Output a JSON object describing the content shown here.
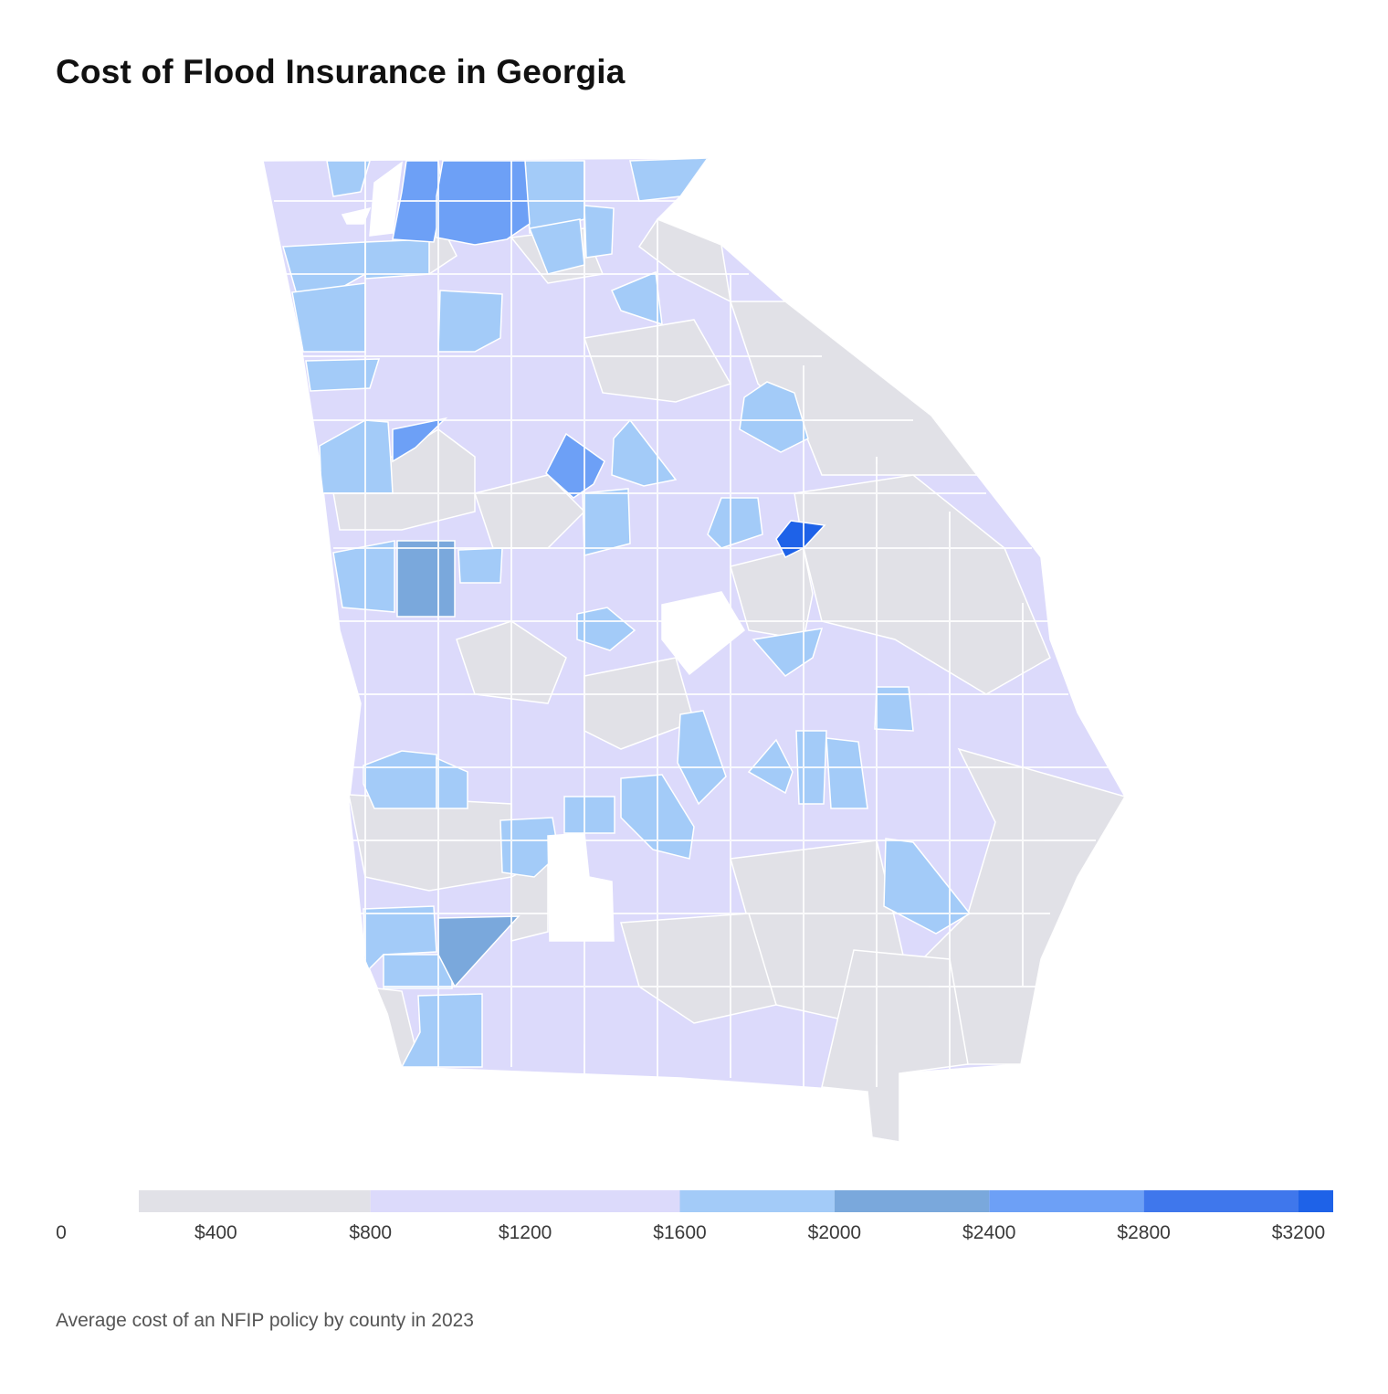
{
  "title": "Cost of Flood Insurance in Georgia",
  "caption": "Average cost of an NFIP policy by county in 2023",
  "colors": {
    "no_data": "#ffffff",
    "c0": "#e1e1e7",
    "c1": "#dcdafb",
    "c2": "#a3cbf8",
    "c3": "#7aa8dc",
    "c4": "#6da0f6",
    "c5": "#3f77ec",
    "c6": "#1e62e8",
    "border": "#ffffff"
  },
  "legend": {
    "labels": [
      "0",
      "$400",
      "$800",
      "$1200",
      "$1600",
      "$2000",
      "$2400",
      "$2800",
      "$3200"
    ],
    "max_value": 3200,
    "bands": [
      {
        "from": 0,
        "to": 800,
        "color_key": "c0"
      },
      {
        "from": 800,
        "to": 1600,
        "color_key": "c1"
      },
      {
        "from": 1600,
        "to": 2000,
        "color_key": "c2"
      },
      {
        "from": 2000,
        "to": 2400,
        "color_key": "c3"
      },
      {
        "from": 2400,
        "to": 2800,
        "color_key": "c4"
      },
      {
        "from": 2800,
        "to": 3200,
        "color_key": "c5"
      },
      {
        "from": 3200,
        "to": 3400,
        "color_key": "c6"
      }
    ]
  }
}
